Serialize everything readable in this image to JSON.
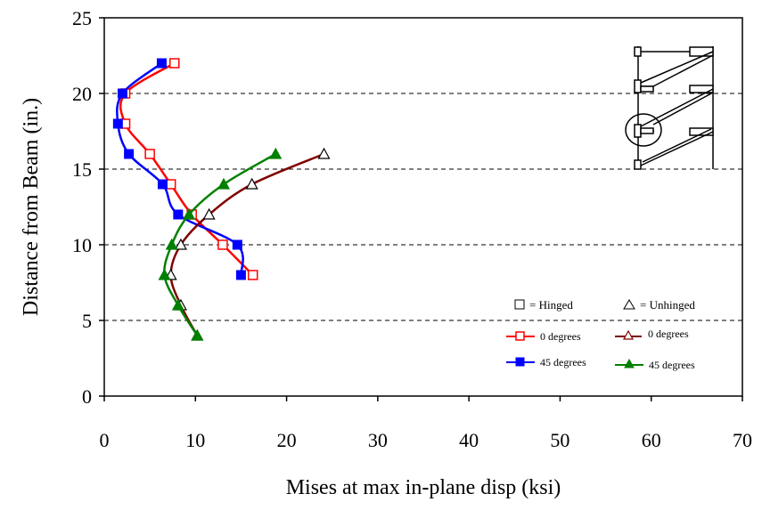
{
  "chart_data": {
    "type": "line",
    "title": "",
    "xlabel": "Mises at max in-plane disp (ksi)",
    "ylabel": "Distance from Beam (in.)",
    "xlim": [
      0,
      70
    ],
    "ylim": [
      0,
      25
    ],
    "x_ticks": [
      0,
      10,
      20,
      30,
      40,
      50,
      60,
      70
    ],
    "y_ticks": [
      0,
      5,
      10,
      15,
      20,
      25
    ],
    "grid": "horizontal dashed",
    "legend_placement": "bottom-right",
    "legend": {
      "hinged_label": "= Hinged",
      "unhinged_label": "= Unhinged",
      "entries": [
        {
          "label": "0 degrees",
          "series": "Hinged 0 degrees"
        },
        {
          "label": "0 degrees",
          "series": "Unhinged 0 degrees"
        },
        {
          "label": "45 degrees",
          "series": "Hinged 45 degrees"
        },
        {
          "label": "45 degrees",
          "series": "Unhinged 45 degrees"
        }
      ]
    },
    "series": [
      {
        "name": "Hinged 0 degrees",
        "color": "#ff0000",
        "marker": "square-open",
        "points": [
          [
            16.3,
            8
          ],
          [
            13.0,
            10
          ],
          [
            9.6,
            12
          ],
          [
            7.3,
            14
          ],
          [
            5.0,
            16
          ],
          [
            2.3,
            18
          ],
          [
            2.3,
            20
          ],
          [
            7.7,
            22
          ]
        ]
      },
      {
        "name": "Hinged 45 degrees",
        "color": "#0000ff",
        "marker": "square-filled",
        "points": [
          [
            15.0,
            8
          ],
          [
            14.6,
            10
          ],
          [
            8.1,
            12
          ],
          [
            6.4,
            14
          ],
          [
            2.7,
            16
          ],
          [
            1.5,
            18
          ],
          [
            2.0,
            20
          ],
          [
            6.3,
            22
          ]
        ]
      },
      {
        "name": "Unhinged 0 degrees",
        "color": "#800000",
        "marker": "triangle-open",
        "points": [
          [
            10.2,
            4
          ],
          [
            8.4,
            6
          ],
          [
            7.3,
            8
          ],
          [
            8.4,
            10
          ],
          [
            11.5,
            12
          ],
          [
            16.2,
            14
          ],
          [
            24.1,
            16
          ]
        ]
      },
      {
        "name": "Unhinged 45 degrees",
        "color": "#008000",
        "marker": "triangle-filled",
        "points": [
          [
            10.2,
            4
          ],
          [
            8.1,
            6
          ],
          [
            6.6,
            8
          ],
          [
            7.4,
            10
          ],
          [
            9.3,
            12
          ],
          [
            13.1,
            14
          ],
          [
            18.8,
            16
          ]
        ]
      }
    ]
  }
}
